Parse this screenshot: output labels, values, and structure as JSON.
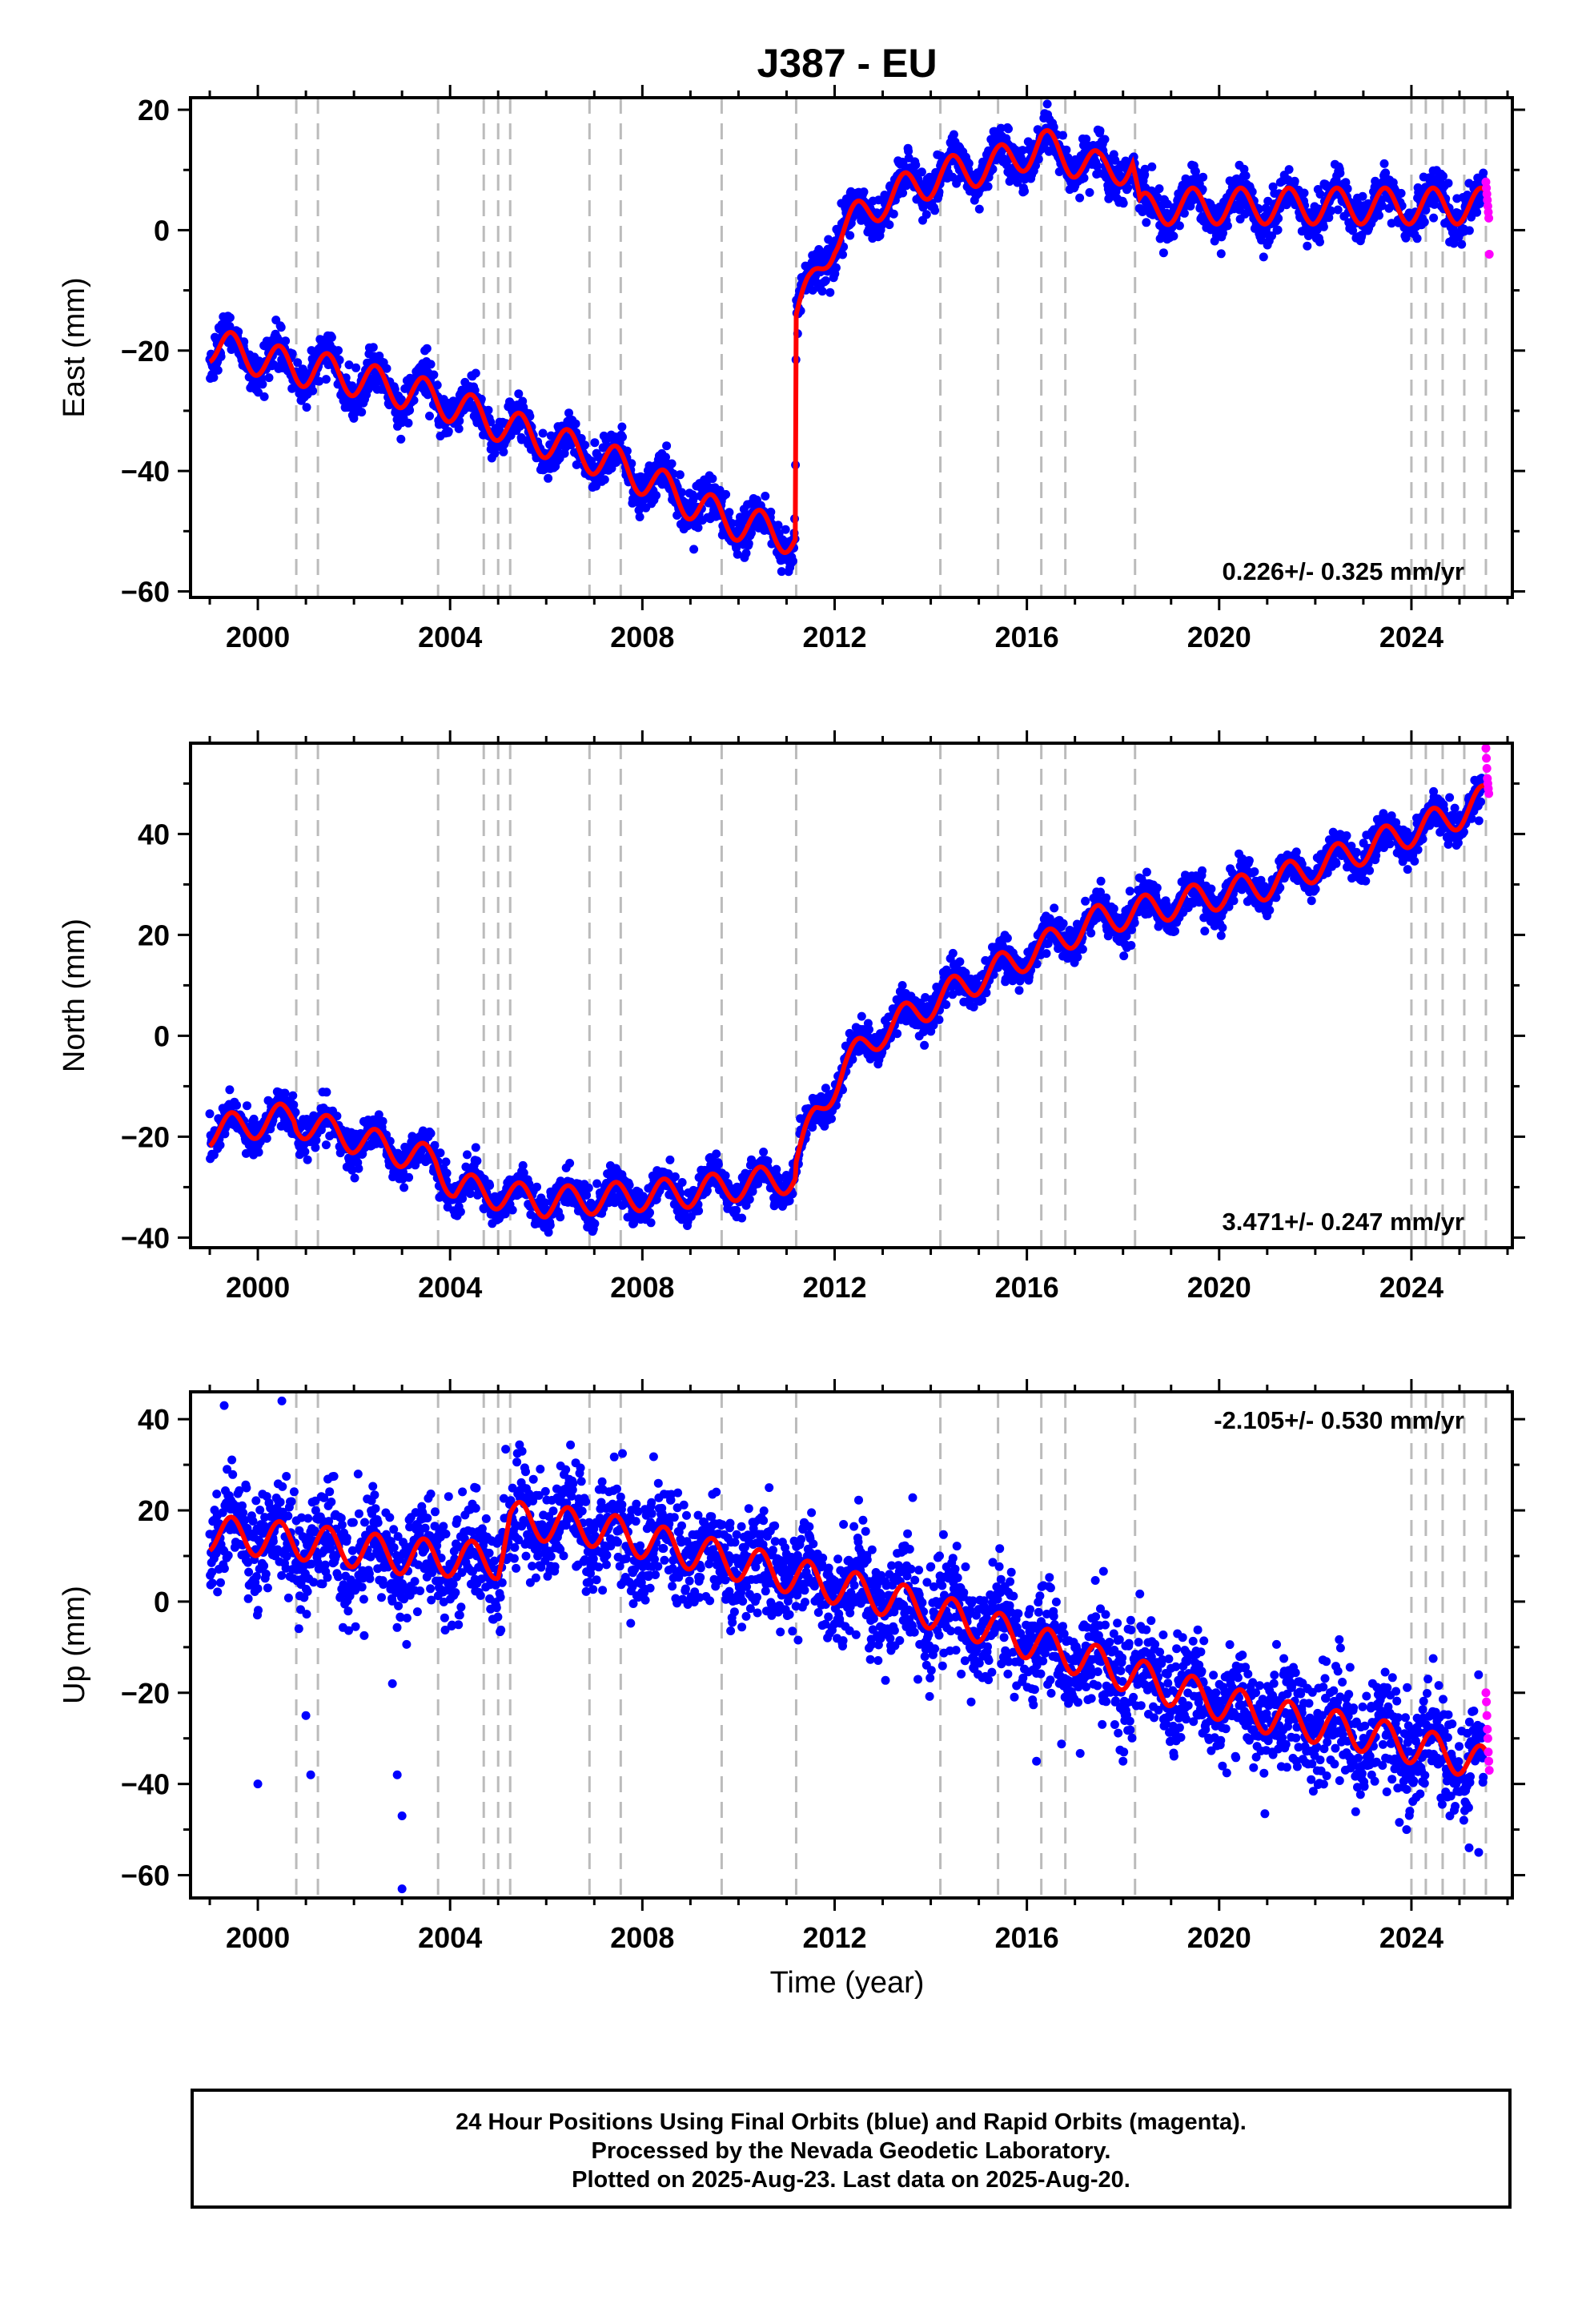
{
  "figure": {
    "title": "J387 - EU",
    "xlabel": "Time (year)",
    "footer": [
      "24 Hour Positions Using Final Orbits (blue) and Rapid Orbits (magenta).",
      "Processed by the Nevada Geodetic Laboratory.",
      "Plotted on 2025-Aug-23. Last data on 2025-Aug-20."
    ]
  },
  "colors": {
    "final_orbits": "#0000ff",
    "rapid_orbits": "#ff00ff",
    "model": "#ff0000",
    "event_lines": "#bbbbbb"
  },
  "chart_data": [
    {
      "type": "scatter",
      "ylabel": "East (mm)",
      "xlim": [
        1998.6,
        2026.1
      ],
      "ylim": [
        -61,
        22
      ],
      "xticks": [
        2000,
        2004,
        2008,
        2012,
        2016,
        2020,
        2024
      ],
      "yticks": [
        20,
        0,
        -20,
        -40,
        -60
      ],
      "rate_label": "0.226+/- 0.325 mm/yr",
      "rate_position": "bottom-right",
      "event_lines": [
        2000.8,
        2001.25,
        2003.75,
        2004.7,
        2005.0,
        2005.25,
        2006.9,
        2007.55,
        2009.65,
        2011.2,
        2014.2,
        2015.4,
        2016.3,
        2016.8,
        2018.25,
        2024.0,
        2024.3,
        2024.65,
        2025.1,
        2025.55
      ],
      "model_knots": [
        [
          1999.0,
          -19
        ],
        [
          2000.8,
          -23
        ],
        [
          2001.2,
          -23
        ],
        [
          2003.7,
          -28
        ],
        [
          2005.3,
          -33
        ],
        [
          2007.5,
          -39
        ],
        [
          2009.7,
          -48
        ],
        [
          2011.18,
          -51
        ],
        [
          2011.2,
          -14
        ],
        [
          2011.5,
          -10
        ],
        [
          2012.0,
          -1
        ],
        [
          2013.0,
          5
        ],
        [
          2014.2,
          9
        ],
        [
          2015.4,
          11
        ],
        [
          2016.3,
          14
        ],
        [
          2017.5,
          10
        ],
        [
          2018.2,
          11
        ],
        [
          2018.35,
          3
        ],
        [
          2019.0,
          4
        ],
        [
          2025.6,
          4
        ]
      ],
      "seasonal_amplitude_mm": 3,
      "final_orbits_range": [
        1999.0,
        2025.5
      ],
      "final_orbits_scatter_mm": 1.8,
      "rapid_orbits": [
        [
          2025.55,
          8
        ],
        [
          2025.56,
          7
        ],
        [
          2025.57,
          6
        ],
        [
          2025.58,
          5
        ],
        [
          2025.59,
          4
        ],
        [
          2025.6,
          3
        ],
        [
          2025.61,
          2
        ],
        [
          2025.62,
          -4
        ]
      ]
    },
    {
      "type": "scatter",
      "ylabel": "North (mm)",
      "xlim": [
        1998.6,
        2026.1
      ],
      "ylim": [
        -42,
        58
      ],
      "xticks": [
        2000,
        2004,
        2008,
        2012,
        2016,
        2020,
        2024
      ],
      "yticks": [
        40,
        20,
        0,
        -20,
        -40
      ],
      "rate_label": "3.471+/- 0.247 mm/yr",
      "rate_position": "bottom-right",
      "event_lines": [
        2000.8,
        2001.25,
        2003.75,
        2004.7,
        2005.0,
        2005.25,
        2006.9,
        2007.55,
        2009.65,
        2011.2,
        2014.2,
        2015.4,
        2016.3,
        2016.8,
        2018.25,
        2024.0,
        2024.3,
        2024.65,
        2025.1,
        2025.55
      ],
      "model_knots": [
        [
          1999.0,
          -19
        ],
        [
          2000.75,
          -16
        ],
        [
          2000.8,
          -17
        ],
        [
          2003.7,
          -25
        ],
        [
          2004.1,
          -30
        ],
        [
          2006.0,
          -33
        ],
        [
          2009.0,
          -31
        ],
        [
          2011.18,
          -28
        ],
        [
          2011.2,
          -25
        ],
        [
          2011.6,
          -16
        ],
        [
          2012.2,
          -6
        ],
        [
          2013.0,
          1
        ],
        [
          2014.5,
          9
        ],
        [
          2016.0,
          16
        ],
        [
          2017.5,
          23
        ],
        [
          2019.0,
          26
        ],
        [
          2021.0,
          30
        ],
        [
          2023.0,
          37
        ],
        [
          2025.0,
          44
        ],
        [
          2025.55,
          47
        ]
      ],
      "seasonal_amplitude_mm": 3,
      "final_orbits_range": [
        1999.0,
        2025.5
      ],
      "final_orbits_scatter_mm": 1.8,
      "rapid_orbits": [
        [
          2025.55,
          57
        ],
        [
          2025.56,
          55
        ],
        [
          2025.57,
          53
        ],
        [
          2025.58,
          51
        ],
        [
          2025.59,
          50
        ],
        [
          2025.6,
          49
        ],
        [
          2025.61,
          48
        ]
      ]
    },
    {
      "type": "scatter",
      "ylabel": "Up (mm)",
      "xlim": [
        1998.6,
        2026.1
      ],
      "ylim": [
        -65,
        46
      ],
      "xticks": [
        2000,
        2004,
        2008,
        2012,
        2016,
        2020,
        2024
      ],
      "yticks": [
        40,
        20,
        0,
        -20,
        -40,
        -60
      ],
      "rate_label": "-2.105+/- 0.530 mm/yr",
      "rate_position": "top-right",
      "event_lines": [
        2000.8,
        2001.25,
        2003.75,
        2004.7,
        2005.0,
        2005.25,
        2006.9,
        2007.55,
        2009.65,
        2011.2,
        2014.2,
        2015.4,
        2016.3,
        2016.8,
        2018.25,
        2024.0,
        2024.3,
        2024.65,
        2025.1,
        2025.55
      ],
      "model_knots": [
        [
          1999.0,
          15
        ],
        [
          2001.0,
          13
        ],
        [
          2003.0,
          10
        ],
        [
          2005.0,
          9
        ],
        [
          2005.25,
          18
        ],
        [
          2007.0,
          16
        ],
        [
          2009.0,
          11
        ],
        [
          2011.0,
          6
        ],
        [
          2013.0,
          1
        ],
        [
          2015.0,
          -5
        ],
        [
          2017.0,
          -12
        ],
        [
          2019.0,
          -19
        ],
        [
          2021.0,
          -25
        ],
        [
          2023.0,
          -29
        ],
        [
          2025.0,
          -34
        ],
        [
          2025.55,
          -36
        ]
      ],
      "seasonal_amplitude_mm": 4,
      "final_orbits_range": [
        1999.0,
        2025.5
      ],
      "final_orbits_scatter_mm": 6,
      "outliers": [
        [
          2000.0,
          -40
        ],
        [
          2001.0,
          -25
        ],
        [
          2001.1,
          -38
        ],
        [
          2002.8,
          -18
        ],
        [
          2002.9,
          -38
        ],
        [
          2003.0,
          -47
        ],
        [
          2003.0,
          -63
        ],
        [
          2000.5,
          44
        ],
        [
          1999.3,
          43
        ],
        [
          2016.2,
          -35
        ],
        [
          2018.0,
          -35
        ],
        [
          2023.9,
          -50
        ],
        [
          2024.8,
          -47
        ],
        [
          2025.2,
          -54
        ],
        [
          2025.4,
          -55
        ]
      ],
      "rapid_orbits": [
        [
          2025.55,
          -20
        ],
        [
          2025.56,
          -22
        ],
        [
          2025.57,
          -25
        ],
        [
          2025.58,
          -28
        ],
        [
          2025.59,
          -30
        ],
        [
          2025.6,
          -33
        ],
        [
          2025.61,
          -35
        ],
        [
          2025.62,
          -37
        ]
      ]
    }
  ]
}
